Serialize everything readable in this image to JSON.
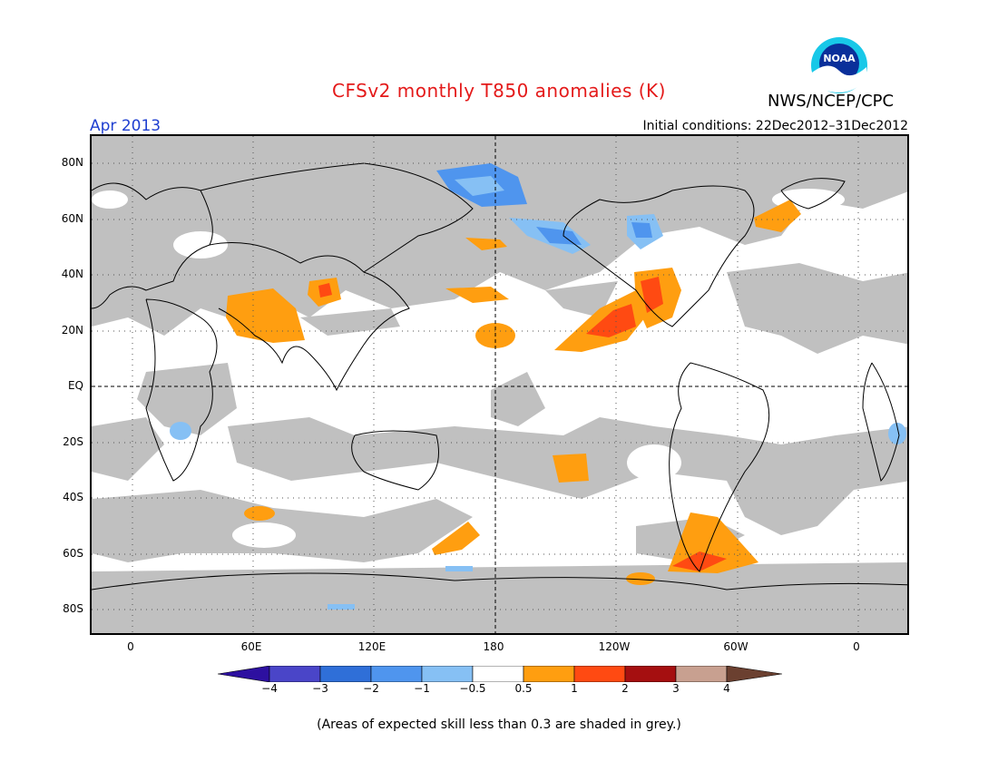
{
  "header": {
    "title": "CFSv2 monthly T850 anomalies (K)",
    "agency": "NWS/NCEP/CPC",
    "logo_text": "NOAA",
    "month": "Apr 2013",
    "initial_conditions": "Initial conditions: 22Dec2012–31Dec2012"
  },
  "axes": {
    "y_labels": [
      "80N",
      "60N",
      "40N",
      "20N",
      "EQ",
      "20S",
      "40S",
      "60S",
      "80S"
    ],
    "x_labels": [
      "0",
      "60E",
      "120E",
      "180",
      "120W",
      "60W",
      "0"
    ]
  },
  "colorbar": {
    "labels": [
      "−4",
      "−3",
      "−2",
      "−1",
      "−0.5",
      "0.5",
      "1",
      "2",
      "3",
      "4"
    ],
    "colors": [
      "#2d10a0",
      "#4a45c8",
      "#2f6fd8",
      "#4f95ee",
      "#86c0f4",
      "#ffffff",
      "#ff9e10",
      "#ff4a12",
      "#a50f10",
      "#c8a090",
      "#6b4030"
    ]
  },
  "colors": {
    "skill_grey": "#c0c0c0",
    "land_line": "#000000"
  },
  "footer": "(Areas of expected skill less than 0.3 are shaded in grey.)"
}
